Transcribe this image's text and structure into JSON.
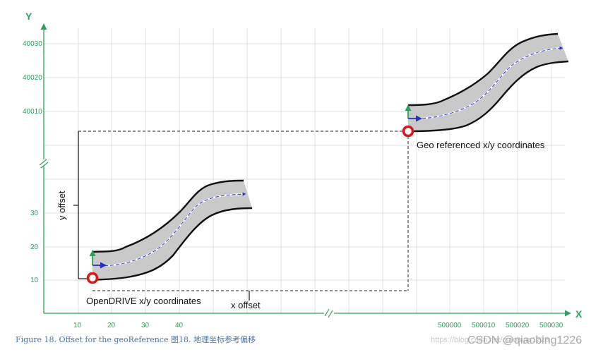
{
  "axes": {
    "x_name": "X",
    "y_name": "Y",
    "x_ticks_local": [
      "10",
      "20",
      "30",
      "40"
    ],
    "x_ticks_geo": [
      "500000",
      "500010",
      "500020",
      "500030"
    ],
    "y_ticks_local": [
      "10",
      "20",
      "30"
    ],
    "y_ticks_geo": [
      "40010",
      "40020",
      "40030"
    ],
    "axis_color": "#2aa25f"
  },
  "labels": {
    "geo": "Geo referenced x/y coordinates",
    "local": "OpenDRIVE x/y coordinates",
    "x_offset": "x offset",
    "y_offset": "y offset"
  },
  "caption": "Figure 18. Offset for the geoReference 图18. 地理坐标参考偏移",
  "watermark": {
    "faint": "https://blog.csdn.net/qiaobing1226",
    "strong": "CSDN @qiaobing1226"
  },
  "colors": {
    "road_fill": "#c9c9c9",
    "road_edge": "#111111",
    "marker": "#d61a1a",
    "lane_arrow": "#2431c8",
    "up_arrow": "#2aa25f"
  }
}
